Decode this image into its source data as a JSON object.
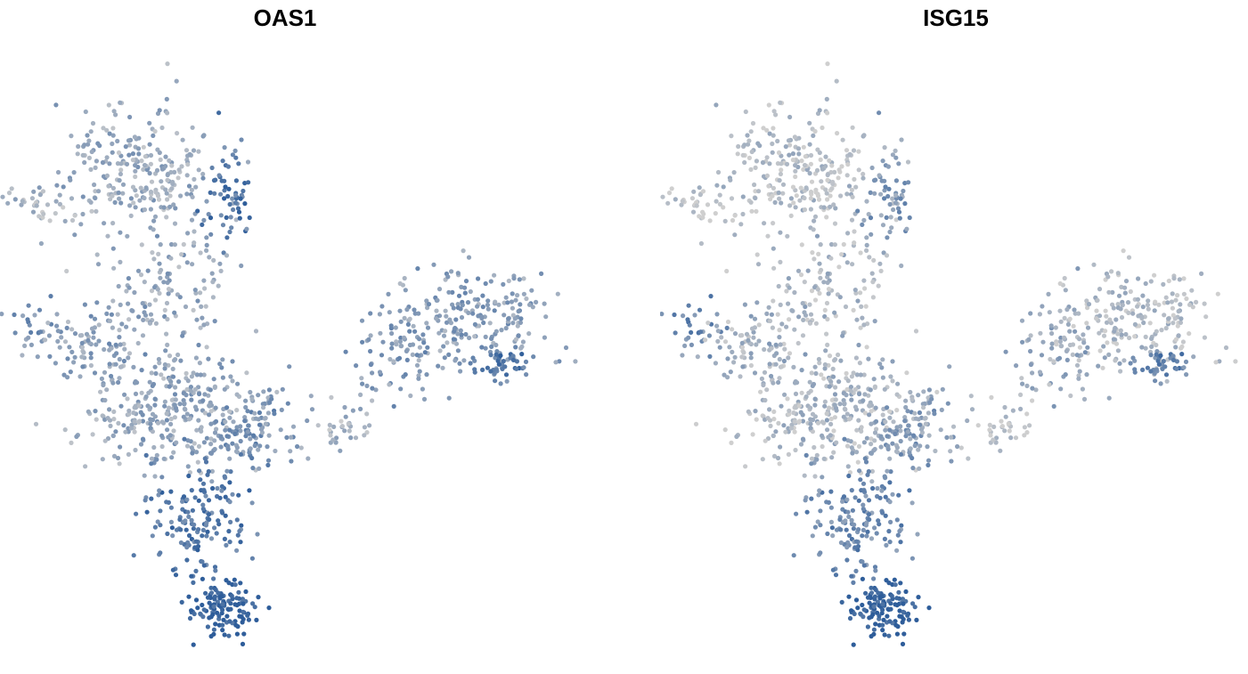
{
  "chart_data": [
    {
      "type": "scatter",
      "title": "OAS1",
      "xlabel": "",
      "ylabel": "",
      "grid": false,
      "legend": "none",
      "color_scale": {
        "low": "#cfcfcf",
        "high": "#2e5d9a"
      },
      "clusters": [
        {
          "center": [
            -8.0,
            7.3
          ],
          "spread": [
            2.0,
            1.8
          ],
          "n": 260,
          "expression": 0.3
        },
        {
          "center": [
            -4.6,
            6.2
          ],
          "spread": [
            0.6,
            1.5
          ],
          "n": 60,
          "expression": 0.75
        },
        {
          "center": [
            -11.8,
            6.0
          ],
          "spread": [
            0.9,
            0.5
          ],
          "n": 35,
          "expression": 0.25
        },
        {
          "center": [
            -6.9,
            2.8
          ],
          "spread": [
            1.7,
            1.6
          ],
          "n": 130,
          "expression": 0.35
        },
        {
          "center": [
            -11.7,
            1.2
          ],
          "spread": [
            0.7,
            0.8
          ],
          "n": 30,
          "expression": 0.5
        },
        {
          "center": [
            -9.8,
            0.6
          ],
          "spread": [
            1.2,
            0.9
          ],
          "n": 80,
          "expression": 0.4
        },
        {
          "center": [
            -7.0,
            -1.9
          ],
          "spread": [
            2.3,
            1.5
          ],
          "n": 320,
          "expression": 0.35
        },
        {
          "center": [
            -4.0,
            -2.9
          ],
          "spread": [
            1.1,
            0.8
          ],
          "n": 70,
          "expression": 0.55
        },
        {
          "center": [
            -3.3,
            -2.0
          ],
          "spread": [
            0.9,
            0.7
          ],
          "n": 40,
          "expression": 0.45
        },
        {
          "center": [
            -5.7,
            -6.0
          ],
          "spread": [
            1.3,
            1.3
          ],
          "n": 150,
          "expression": 0.75
        },
        {
          "center": [
            -4.7,
            -9.4
          ],
          "spread": [
            0.9,
            0.8
          ],
          "n": 120,
          "expression": 1.0
        },
        {
          "center": [
            -0.5,
            -2.5
          ],
          "spread": [
            1.1,
            0.7
          ],
          "n": 40,
          "expression": 0.25
        },
        {
          "center": [
            2.2,
            0.5
          ],
          "spread": [
            1.4,
            1.3
          ],
          "n": 90,
          "expression": 0.45
        },
        {
          "center": [
            5.0,
            1.6
          ],
          "spread": [
            2.0,
            1.3
          ],
          "n": 200,
          "expression": 0.4
        },
        {
          "center": [
            5.7,
            -0.2
          ],
          "spread": [
            0.7,
            0.5
          ],
          "n": 40,
          "expression": 0.8
        }
      ],
      "xlim": [
        -13,
        8
      ],
      "ylim": [
        -11,
        11
      ]
    },
    {
      "type": "scatter",
      "title": "ISG15",
      "xlabel": "",
      "ylabel": "",
      "grid": false,
      "legend": "none",
      "color_scale": {
        "low": "#cfcfcf",
        "high": "#2e5d9a"
      },
      "clusters": [
        {
          "center": [
            -8.0,
            7.3
          ],
          "spread": [
            2.0,
            1.8
          ],
          "n": 260,
          "expression": 0.12
        },
        {
          "center": [
            -4.6,
            6.2
          ],
          "spread": [
            0.6,
            1.5
          ],
          "n": 60,
          "expression": 0.45
        },
        {
          "center": [
            -11.8,
            6.0
          ],
          "spread": [
            0.9,
            0.5
          ],
          "n": 35,
          "expression": 0.08
        },
        {
          "center": [
            -6.9,
            2.8
          ],
          "spread": [
            1.7,
            1.6
          ],
          "n": 130,
          "expression": 0.2
        },
        {
          "center": [
            -11.7,
            1.2
          ],
          "spread": [
            0.7,
            0.8
          ],
          "n": 30,
          "expression": 0.6
        },
        {
          "center": [
            -9.8,
            0.6
          ],
          "spread": [
            1.2,
            0.9
          ],
          "n": 80,
          "expression": 0.25
        },
        {
          "center": [
            -7.0,
            -1.9
          ],
          "spread": [
            2.3,
            1.5
          ],
          "n": 320,
          "expression": 0.2
        },
        {
          "center": [
            -4.0,
            -2.9
          ],
          "spread": [
            1.1,
            0.8
          ],
          "n": 70,
          "expression": 0.45
        },
        {
          "center": [
            -3.3,
            -2.0
          ],
          "spread": [
            0.9,
            0.7
          ],
          "n": 40,
          "expression": 0.35
        },
        {
          "center": [
            -5.7,
            -6.0
          ],
          "spread": [
            1.3,
            1.3
          ],
          "n": 150,
          "expression": 0.6
        },
        {
          "center": [
            -4.7,
            -9.4
          ],
          "spread": [
            0.9,
            0.8
          ],
          "n": 120,
          "expression": 1.0
        },
        {
          "center": [
            -0.5,
            -2.5
          ],
          "spread": [
            1.1,
            0.7
          ],
          "n": 40,
          "expression": 0.08
        },
        {
          "center": [
            2.2,
            0.5
          ],
          "spread": [
            1.4,
            1.3
          ],
          "n": 90,
          "expression": 0.3
        },
        {
          "center": [
            5.0,
            1.6
          ],
          "spread": [
            2.0,
            1.3
          ],
          "n": 200,
          "expression": 0.12
        },
        {
          "center": [
            5.7,
            -0.2
          ],
          "spread": [
            0.7,
            0.5
          ],
          "n": 40,
          "expression": 0.7
        }
      ],
      "xlim": [
        -13,
        8
      ],
      "ylim": [
        -11,
        11
      ]
    }
  ]
}
